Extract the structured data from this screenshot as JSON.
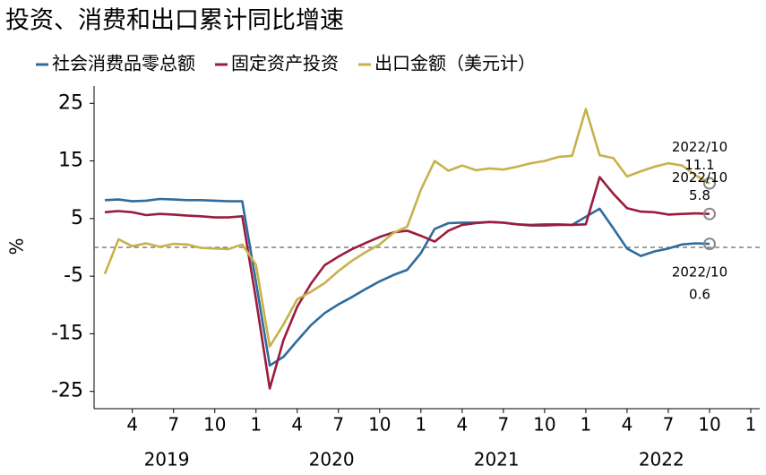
{
  "chart_data": {
    "type": "line",
    "title": "投资、消费和出口累计同比增速",
    "y_label": "%",
    "categories": [
      null,
      null,
      "4",
      null,
      null,
      "7",
      null,
      null,
      "10",
      null,
      null,
      "1",
      null,
      null,
      "4",
      null,
      null,
      "7",
      null,
      null,
      "10",
      null,
      null,
      "1",
      null,
      null,
      "4",
      null,
      null,
      "7",
      null,
      null,
      "10",
      null,
      null,
      "1",
      null,
      null,
      "4",
      null,
      null,
      "7",
      null,
      null,
      "10",
      null,
      null,
      "1"
    ],
    "year_labels": [
      "2019",
      "2020",
      "2021",
      "2022"
    ],
    "series": [
      {
        "name": "社会消费品零总额",
        "color": "#2f6b9c",
        "values": [
          8.2,
          8.3,
          8.0,
          8.1,
          8.4,
          8.3,
          8.2,
          8.2,
          8.1,
          8.0,
          8.0,
          -6,
          -20.5,
          -19.0,
          -16.2,
          -13.5,
          -11.4,
          -9.9,
          -8.6,
          -7.2,
          -5.9,
          -4.8,
          -3.9,
          -1,
          3.2,
          4.2,
          4.3,
          4.3,
          4.4,
          4.3,
          4.0,
          3.9,
          4.0,
          4.0,
          3.9,
          5.3,
          6.7,
          3.3,
          -0.2,
          -1.5,
          -0.7,
          -0.2,
          0.5,
          0.7,
          0.6,
          null,
          null,
          null
        ]
      },
      {
        "name": "固定资产投资",
        "color": "#9b1c3c",
        "values": [
          6.1,
          6.3,
          6.1,
          5.6,
          5.8,
          5.7,
          5.5,
          5.4,
          5.2,
          5.2,
          5.4,
          -9,
          -24.5,
          -16.1,
          -10.3,
          -6.3,
          -3.1,
          -1.6,
          -0.3,
          0.8,
          1.8,
          2.6,
          2.9,
          2.0,
          1.0,
          2.9,
          3.9,
          4.2,
          4.4,
          4.3,
          4.0,
          3.8,
          3.8,
          3.9,
          3.9,
          4.0,
          12.2,
          9.3,
          6.8,
          6.2,
          6.1,
          5.7,
          5.8,
          5.9,
          5.8,
          null,
          null,
          null
        ]
      },
      {
        "name": "出口金额（美元计）",
        "color": "#c6b24a",
        "values": [
          -4.6,
          1.4,
          0.2,
          0.7,
          0.1,
          0.6,
          0.5,
          -0.1,
          -0.2,
          -0.3,
          0.5,
          -3,
          -17.2,
          -13.4,
          -9.0,
          -7.7,
          -6.2,
          -4.1,
          -2.3,
          -0.8,
          0.5,
          2.5,
          3.6,
          10.0,
          15.0,
          13.3,
          14.2,
          13.4,
          13.7,
          13.5,
          14.0,
          14.6,
          15.0,
          15.7,
          15.9,
          24.0,
          16.0,
          15.5,
          12.3,
          13.2,
          14.0,
          14.6,
          14.2,
          12.5,
          11.1,
          null,
          null,
          null
        ]
      }
    ],
    "annotations": [
      "2022/10",
      "2022/10",
      "2022/10"
    ],
    "ylim": [
      -28,
      28
    ],
    "yticks": [
      25,
      15,
      5,
      -5,
      -15,
      -25
    ],
    "reference_line": 0,
    "grid": false
  }
}
